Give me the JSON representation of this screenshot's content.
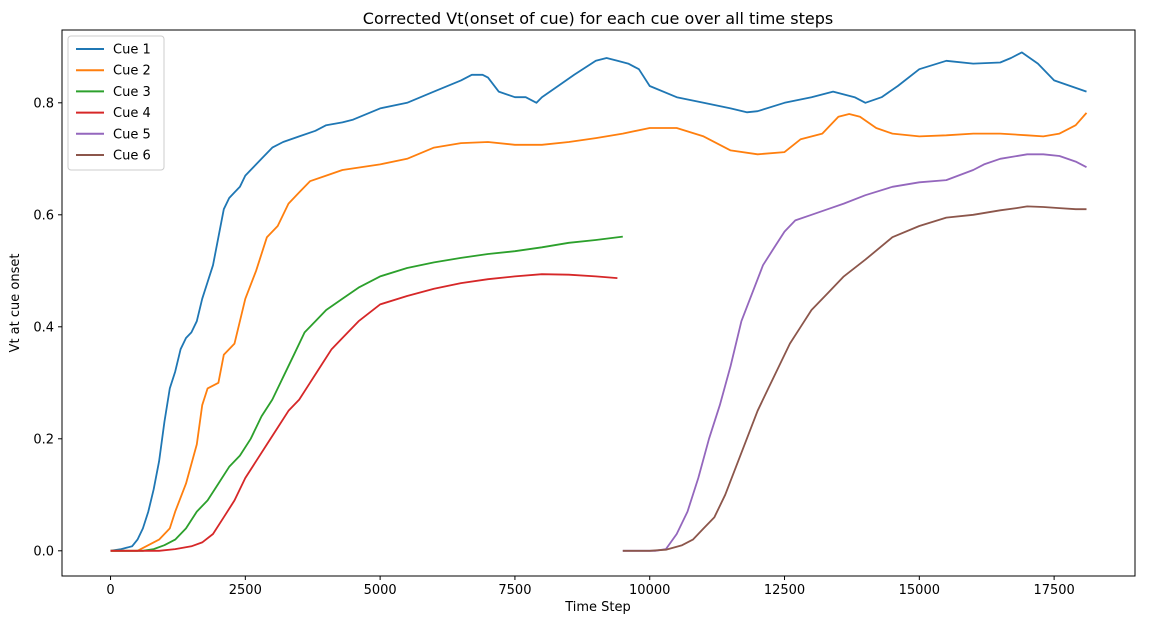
{
  "chart_data": {
    "type": "line",
    "title": "Corrected Vt(onset of cue) for each cue over all time steps",
    "xlabel": "Time Step",
    "ylabel": "Vt at cue onset",
    "xlim": [
      -900,
      19000
    ],
    "ylim": [
      -0.045,
      0.93
    ],
    "xticks": [
      0,
      2500,
      5000,
      7500,
      10000,
      12500,
      15000,
      17500
    ],
    "yticks": [
      0.0,
      0.2,
      0.4,
      0.6,
      0.8
    ],
    "xtick_labels": [
      "0",
      "2500",
      "5000",
      "7500",
      "10000",
      "12500",
      "15000",
      "17500"
    ],
    "ytick_labels": [
      "0.0",
      "0.2",
      "0.4",
      "0.6",
      "0.8"
    ],
    "grid": false,
    "legend_position": "top-left",
    "series": [
      {
        "name": "Cue 1",
        "color": "#1f77b4",
        "x": [
          0,
          200,
          400,
          500,
          600,
          700,
          800,
          900,
          1000,
          1100,
          1200,
          1300,
          1400,
          1500,
          1600,
          1700,
          1800,
          1900,
          2000,
          2100,
          2200,
          2300,
          2400,
          2500,
          2600,
          2700,
          2800,
          3000,
          3200,
          3500,
          3800,
          4000,
          4300,
          4500,
          5000,
          5500,
          6000,
          6500,
          6700,
          6900,
          7000,
          7200,
          7500,
          7700,
          7900,
          8000,
          8300,
          8600,
          9000,
          9200,
          9400,
          9600,
          9800,
          10000,
          10500,
          11000,
          11500,
          11800,
          12000,
          12500,
          13000,
          13400,
          13800,
          14000,
          14300,
          14600,
          15000,
          15500,
          16000,
          16500,
          16700,
          16900,
          17200,
          17500,
          17800,
          18100
        ],
        "y": [
          0.0,
          0.003,
          0.008,
          0.02,
          0.04,
          0.07,
          0.11,
          0.16,
          0.23,
          0.29,
          0.32,
          0.36,
          0.38,
          0.39,
          0.41,
          0.45,
          0.48,
          0.51,
          0.56,
          0.61,
          0.63,
          0.64,
          0.65,
          0.67,
          0.68,
          0.69,
          0.7,
          0.72,
          0.73,
          0.74,
          0.75,
          0.76,
          0.765,
          0.77,
          0.79,
          0.8,
          0.82,
          0.84,
          0.85,
          0.85,
          0.845,
          0.82,
          0.81,
          0.81,
          0.8,
          0.81,
          0.83,
          0.85,
          0.875,
          0.88,
          0.875,
          0.87,
          0.86,
          0.83,
          0.81,
          0.8,
          0.79,
          0.783,
          0.785,
          0.8,
          0.81,
          0.82,
          0.81,
          0.8,
          0.81,
          0.83,
          0.86,
          0.875,
          0.87,
          0.872,
          0.88,
          0.89,
          0.87,
          0.84,
          0.83,
          0.82
        ]
      },
      {
        "name": "Cue 2",
        "color": "#ff7f0e",
        "x": [
          0,
          300,
          500,
          700,
          900,
          1100,
          1200,
          1400,
          1600,
          1700,
          1800,
          2000,
          2100,
          2300,
          2500,
          2700,
          2900,
          3100,
          3300,
          3500,
          3700,
          4000,
          4300,
          5000,
          5500,
          6000,
          6500,
          7000,
          7500,
          8000,
          8500,
          9000,
          9500,
          10000,
          10500,
          11000,
          11500,
          12000,
          12500,
          12800,
          13200,
          13500,
          13700,
          13900,
          14200,
          14500,
          15000,
          15500,
          16000,
          16500,
          17000,
          17300,
          17600,
          17900,
          18100
        ],
        "y": [
          0.0,
          0.0,
          0.0,
          0.01,
          0.02,
          0.04,
          0.07,
          0.12,
          0.19,
          0.26,
          0.29,
          0.3,
          0.35,
          0.37,
          0.45,
          0.5,
          0.56,
          0.58,
          0.62,
          0.64,
          0.66,
          0.67,
          0.68,
          0.69,
          0.7,
          0.72,
          0.728,
          0.73,
          0.725,
          0.725,
          0.73,
          0.737,
          0.745,
          0.755,
          0.755,
          0.74,
          0.715,
          0.708,
          0.712,
          0.735,
          0.745,
          0.775,
          0.78,
          0.775,
          0.755,
          0.745,
          0.74,
          0.742,
          0.745,
          0.745,
          0.742,
          0.74,
          0.745,
          0.76,
          0.782
        ]
      },
      {
        "name": "Cue 3",
        "color": "#2ca02c",
        "x": [
          0,
          300,
          600,
          800,
          1000,
          1200,
          1400,
          1600,
          1800,
          2000,
          2200,
          2400,
          2600,
          2800,
          3000,
          3200,
          3400,
          3600,
          3800,
          4000,
          4300,
          4600,
          5000,
          5500,
          6000,
          6500,
          7000,
          7500,
          8000,
          8500,
          9000,
          9500
        ],
        "y": [
          0.0,
          0.0,
          0.0,
          0.003,
          0.01,
          0.02,
          0.04,
          0.07,
          0.09,
          0.12,
          0.15,
          0.17,
          0.2,
          0.24,
          0.27,
          0.31,
          0.35,
          0.39,
          0.41,
          0.43,
          0.45,
          0.47,
          0.49,
          0.505,
          0.515,
          0.523,
          0.53,
          0.535,
          0.542,
          0.55,
          0.555,
          0.561
        ]
      },
      {
        "name": "Cue 4",
        "color": "#d62728",
        "x": [
          0,
          300,
          600,
          900,
          1200,
          1500,
          1700,
          1900,
          2100,
          2300,
          2500,
          2700,
          2900,
          3100,
          3300,
          3500,
          3700,
          3900,
          4100,
          4300,
          4600,
          5000,
          5500,
          6000,
          6500,
          7000,
          7500,
          8000,
          8500,
          9000,
          9400
        ],
        "y": [
          0.0,
          0.0,
          0.0,
          0.0,
          0.003,
          0.008,
          0.015,
          0.03,
          0.06,
          0.09,
          0.13,
          0.16,
          0.19,
          0.22,
          0.25,
          0.27,
          0.3,
          0.33,
          0.36,
          0.38,
          0.41,
          0.44,
          0.455,
          0.468,
          0.478,
          0.485,
          0.49,
          0.494,
          0.493,
          0.49,
          0.487
        ]
      },
      {
        "name": "Cue 5",
        "color": "#9467bd",
        "x": [
          9500,
          9800,
          10100,
          10300,
          10500,
          10700,
          10900,
          11100,
          11300,
          11500,
          11700,
          11900,
          12100,
          12300,
          12500,
          12700,
          13000,
          13300,
          13600,
          14000,
          14500,
          15000,
          15500,
          16000,
          16200,
          16500,
          17000,
          17300,
          17600,
          17900,
          18100
        ],
        "y": [
          0.0,
          0.0,
          0.0,
          0.003,
          0.03,
          0.07,
          0.13,
          0.2,
          0.26,
          0.33,
          0.41,
          0.46,
          0.51,
          0.54,
          0.57,
          0.59,
          0.6,
          0.61,
          0.62,
          0.635,
          0.65,
          0.658,
          0.662,
          0.68,
          0.69,
          0.7,
          0.708,
          0.708,
          0.705,
          0.695,
          0.685
        ]
      },
      {
        "name": "Cue 6",
        "color": "#8c564b",
        "x": [
          9500,
          10000,
          10300,
          10600,
          10800,
          11000,
          11200,
          11400,
          11600,
          11800,
          12000,
          12200,
          12400,
          12600,
          12800,
          13000,
          13300,
          13600,
          14000,
          14500,
          15000,
          15500,
          16000,
          16500,
          16800,
          17000,
          17300,
          17600,
          17900,
          18100
        ],
        "y": [
          0.0,
          0.0,
          0.002,
          0.01,
          0.02,
          0.04,
          0.06,
          0.1,
          0.15,
          0.2,
          0.25,
          0.29,
          0.33,
          0.37,
          0.4,
          0.43,
          0.46,
          0.49,
          0.52,
          0.56,
          0.58,
          0.595,
          0.6,
          0.608,
          0.612,
          0.615,
          0.614,
          0.612,
          0.61,
          0.61
        ]
      }
    ]
  }
}
